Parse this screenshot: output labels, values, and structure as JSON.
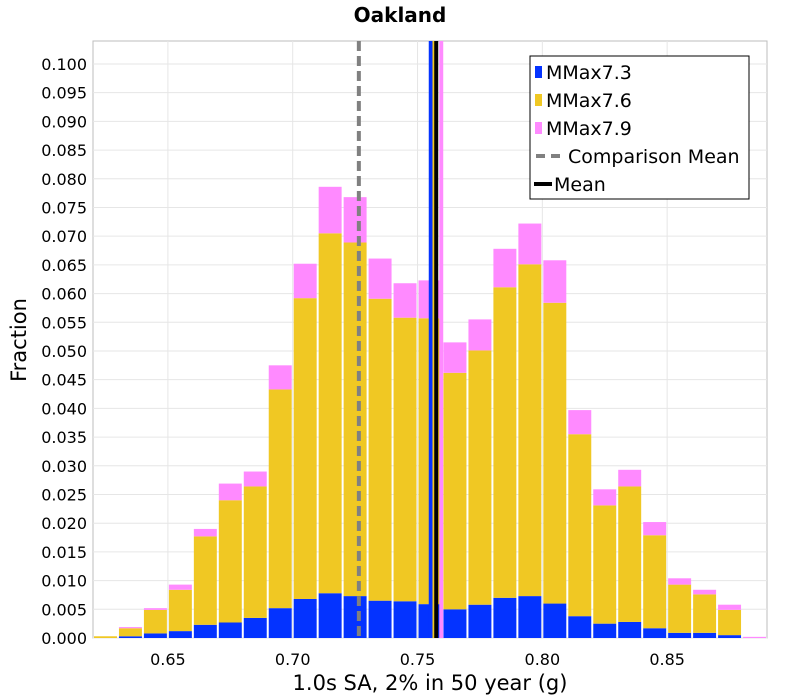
{
  "chart_data": {
    "type": "bar",
    "stacked": true,
    "title": "Oakland",
    "xlabel": "1.0s SA, 2% in 50 year (g)",
    "ylabel": "Fraction",
    "xlim": [
      0.62,
      0.89
    ],
    "ylim": [
      0,
      0.104
    ],
    "bin_width": 0.01,
    "grid": true,
    "legend_position": "top-right",
    "x_ticks": [
      "0.65",
      "0.70",
      "0.75",
      "0.80",
      "0.85"
    ],
    "y_ticks": [
      "0.000",
      "0.005",
      "0.010",
      "0.015",
      "0.020",
      "0.025",
      "0.030",
      "0.035",
      "0.040",
      "0.045",
      "0.050",
      "0.055",
      "0.060",
      "0.065",
      "0.070",
      "0.075",
      "0.080",
      "0.085",
      "0.090",
      "0.095",
      "0.100"
    ],
    "bin_centers": [
      0.625,
      0.635,
      0.645,
      0.655,
      0.665,
      0.675,
      0.685,
      0.695,
      0.705,
      0.715,
      0.725,
      0.735,
      0.745,
      0.755,
      0.765,
      0.775,
      0.785,
      0.795,
      0.805,
      0.815,
      0.825,
      0.835,
      0.845,
      0.855,
      0.865,
      0.875,
      0.885
    ],
    "series": [
      {
        "name": "MMax7.3",
        "color": "#0433ff",
        "values": [
          0.0,
          0.0003,
          0.0008,
          0.0012,
          0.0023,
          0.0027,
          0.0035,
          0.0052,
          0.0068,
          0.0078,
          0.0073,
          0.0065,
          0.0064,
          0.0059,
          0.005,
          0.0058,
          0.007,
          0.0073,
          0.006,
          0.0038,
          0.0025,
          0.0028,
          0.0017,
          0.0009,
          0.0009,
          0.0005,
          0.0
        ]
      },
      {
        "name": "MMax7.6",
        "color": "#f0c823",
        "values": [
          0.0003,
          0.0014,
          0.0041,
          0.0072,
          0.0154,
          0.0213,
          0.0229,
          0.0381,
          0.0524,
          0.0627,
          0.0616,
          0.0526,
          0.0494,
          0.0498,
          0.0412,
          0.0443,
          0.0541,
          0.0578,
          0.0524,
          0.0317,
          0.0206,
          0.0236,
          0.0162,
          0.0084,
          0.0067,
          0.0044,
          0.0
        ]
      },
      {
        "name": "MMax7.9",
        "color": "#ff8aff",
        "values": [
          0.0,
          0.0002,
          0.0003,
          0.0009,
          0.0013,
          0.0029,
          0.0026,
          0.0042,
          0.006,
          0.0081,
          0.0079,
          0.007,
          0.006,
          0.0066,
          0.0053,
          0.0054,
          0.0067,
          0.0071,
          0.0074,
          0.0042,
          0.0028,
          0.0029,
          0.0023,
          0.0011,
          0.0008,
          0.0009,
          0.0002
        ]
      }
    ],
    "vertical_lines": [
      {
        "name": "Comparison Mean",
        "x": 0.7265,
        "color": "#808080",
        "style": "dashed"
      },
      {
        "name": "MMax7.3",
        "x": 0.7553,
        "color": "#0433ff",
        "style": "solid",
        "in_legend": false
      },
      {
        "name": "MMax7.9",
        "x": 0.7595,
        "color": "#ff8aff",
        "style": "solid",
        "in_legend": false
      },
      {
        "name": "MMax7.6",
        "x": 0.7568,
        "color": "#f0c823",
        "style": "solid",
        "in_legend": false
      },
      {
        "name": "Mean",
        "x": 0.7575,
        "color": "#000000",
        "style": "solid"
      }
    ],
    "legend": [
      {
        "label": "MMax7.3",
        "kind": "box",
        "color": "#0433ff"
      },
      {
        "label": "MMax7.6",
        "kind": "box",
        "color": "#f0c823"
      },
      {
        "label": "MMax7.9",
        "kind": "box",
        "color": "#ff8aff"
      },
      {
        "label": "Comparison Mean",
        "kind": "dash",
        "color": "#808080"
      },
      {
        "label": "Mean",
        "kind": "line",
        "color": "#000000"
      }
    ]
  }
}
